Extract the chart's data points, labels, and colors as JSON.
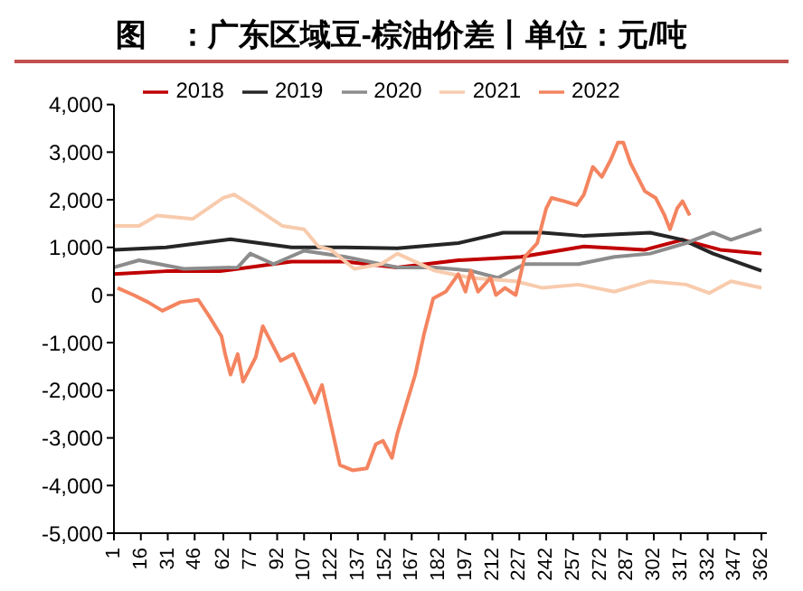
{
  "chart_data": {
    "type": "line",
    "title": "图　：广东区域豆-棕油价差丨单位：元/吨",
    "legend": "top",
    "grid": false,
    "marker": "none",
    "line_style": "solid",
    "xlim": [
      1,
      365
    ],
    "xticks": [
      1,
      16,
      31,
      46,
      62,
      77,
      92,
      107,
      122,
      137,
      152,
      167,
      182,
      197,
      212,
      227,
      242,
      257,
      272,
      287,
      302,
      317,
      332,
      347,
      362
    ],
    "ylim": [
      -5000,
      4000
    ],
    "yticks": [
      {
        "value": -5000,
        "label": "-5,000"
      },
      {
        "value": -4000,
        "label": "-4,000"
      },
      {
        "value": -3000,
        "label": "-3,000"
      },
      {
        "value": -2000,
        "label": "-2,000"
      },
      {
        "value": -1000,
        "label": "-1,000"
      },
      0,
      {
        "value": 1000,
        "label": "1,000"
      },
      {
        "value": 2000,
        "label": "2,000"
      },
      {
        "value": 3000,
        "label": "3,000"
      },
      {
        "value": 4000,
        "label": "4,000"
      }
    ],
    "series": [
      {
        "name": "2018",
        "color": "#c00000",
        "x": [
          1,
          30,
          60,
          100,
          130,
          159,
          193,
          228,
          263,
          297,
          318,
          339,
          362
        ],
        "values": [
          440,
          500,
          500,
          700,
          700,
          580,
          730,
          800,
          1020,
          950,
          1160,
          950,
          870
        ]
      },
      {
        "name": "2019",
        "color": "#262626",
        "x": [
          1,
          30,
          66,
          100,
          130,
          159,
          193,
          218,
          240,
          263,
          300,
          318,
          335,
          362
        ],
        "values": [
          950,
          1000,
          1170,
          1000,
          1000,
          980,
          1090,
          1310,
          1310,
          1240,
          1310,
          1160,
          870,
          510
        ]
      },
      {
        "name": "2020",
        "color": "#8c8c8c",
        "x": [
          1,
          15,
          40,
          70,
          77,
          90,
          107,
          130,
          159,
          180,
          200,
          215,
          230,
          260,
          280,
          300,
          320,
          335,
          345,
          362
        ],
        "values": [
          580,
          730,
          550,
          580,
          870,
          650,
          930,
          800,
          580,
          580,
          510,
          360,
          650,
          650,
          800,
          870,
          1090,
          1310,
          1160,
          1380
        ]
      },
      {
        "name": "2021",
        "color": "#f8cbad",
        "x": [
          1,
          15,
          25,
          45,
          62,
          68,
          77,
          95,
          107,
          115,
          122,
          135,
          150,
          159,
          180,
          200,
          225,
          240,
          260,
          280,
          300,
          320,
          333,
          345,
          362
        ],
        "values": [
          1450,
          1450,
          1670,
          1600,
          2040,
          2110,
          1900,
          1450,
          1380,
          1020,
          950,
          550,
          650,
          870,
          510,
          360,
          290,
          150,
          220,
          70,
          290,
          220,
          40,
          290,
          150
        ]
      },
      {
        "name": "2022",
        "color": "#f4845f",
        "x": [
          3,
          12,
          20,
          28,
          38,
          48,
          54,
          61,
          63,
          66,
          70,
          73,
          80,
          84,
          87,
          94,
          101,
          108,
          113,
          117,
          121,
          127,
          134,
          142,
          147,
          151,
          156,
          159,
          169,
          174,
          179,
          186,
          193,
          197,
          200,
          204,
          211,
          214,
          219,
          225,
          230,
          237,
          242,
          245,
          252,
          259,
          263,
          268,
          273,
          278,
          282,
          285,
          289,
          292,
          297,
          303,
          308,
          311,
          315,
          318,
          322
        ],
        "values": [
          150,
          0,
          -150,
          -330,
          -150,
          -100,
          -440,
          -870,
          -1240,
          -1670,
          -1240,
          -1820,
          -1310,
          -655,
          -870,
          -1380,
          -1240,
          -1820,
          -2260,
          -1890,
          -2550,
          -3570,
          -3680,
          -3640,
          -3130,
          -3060,
          -3420,
          -2910,
          -1670,
          -800,
          -70,
          70,
          440,
          70,
          510,
          70,
          360,
          0,
          150,
          0,
          800,
          1090,
          1820,
          2040,
          1970,
          1890,
          2110,
          2690,
          2480,
          2840,
          3200,
          3200,
          2770,
          2550,
          2180,
          2040,
          1670,
          1380,
          1820,
          1970,
          1670
        ]
      }
    ]
  }
}
